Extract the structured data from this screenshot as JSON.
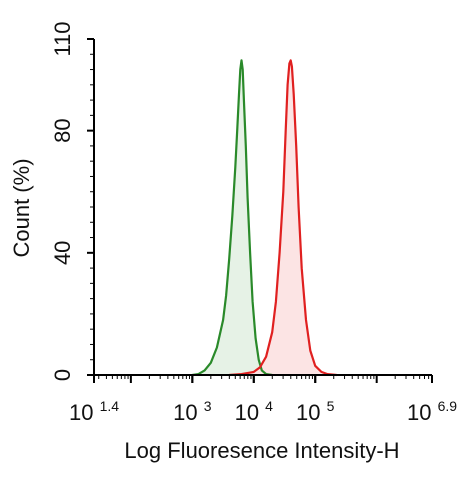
{
  "chart_data": {
    "type": "area",
    "xlabel": "Log Fluoresence Intensity-H",
    "ylabel": "Count  (%)",
    "xscale": "log",
    "xlim_log10": [
      1.4,
      6.9
    ],
    "ylim": [
      0,
      110
    ],
    "grid": false,
    "legend": "none",
    "x_ticks": [
      {
        "base": "10",
        "exp": "1.4",
        "log": 1.4
      },
      {
        "base": "10",
        "exp": "3",
        "log": 3
      },
      {
        "base": "10",
        "exp": "4",
        "log": 4
      },
      {
        "base": "10",
        "exp": "5",
        "log": 5
      },
      {
        "base": "10",
        "exp": "6.9",
        "log": 6.9
      }
    ],
    "y_ticks": [
      {
        "label": "0",
        "value": 0
      },
      {
        "label": "40",
        "value": 40
      },
      {
        "label": "80",
        "value": 80
      },
      {
        "label": "110",
        "value": 110
      }
    ],
    "series": [
      {
        "color": "#2a8a2a",
        "fill": "#e6f2e6",
        "points": [
          [
            3.0,
            0
          ],
          [
            3.1,
            0.3
          ],
          [
            3.2,
            1.5
          ],
          [
            3.3,
            4
          ],
          [
            3.4,
            9
          ],
          [
            3.5,
            18
          ],
          [
            3.55,
            26
          ],
          [
            3.6,
            38
          ],
          [
            3.65,
            52
          ],
          [
            3.7,
            68
          ],
          [
            3.73,
            80
          ],
          [
            3.76,
            92
          ],
          [
            3.78,
            100
          ],
          [
            3.8,
            103
          ],
          [
            3.82,
            100
          ],
          [
            3.84,
            90
          ],
          [
            3.87,
            75
          ],
          [
            3.9,
            58
          ],
          [
            3.94,
            40
          ],
          [
            3.98,
            24
          ],
          [
            4.03,
            12
          ],
          [
            4.08,
            5
          ],
          [
            4.13,
            1.5
          ],
          [
            4.2,
            0.3
          ],
          [
            4.3,
            0
          ]
        ]
      },
      {
        "color": "#e02020",
        "fill": "#fce4e4",
        "points": [
          [
            3.6,
            0
          ],
          [
            3.8,
            0.3
          ],
          [
            4.0,
            1
          ],
          [
            4.1,
            2.5
          ],
          [
            4.2,
            6
          ],
          [
            4.3,
            14
          ],
          [
            4.36,
            24
          ],
          [
            4.42,
            40
          ],
          [
            4.48,
            60
          ],
          [
            4.52,
            80
          ],
          [
            4.55,
            95
          ],
          [
            4.58,
            102
          ],
          [
            4.6,
            103
          ],
          [
            4.62,
            101
          ],
          [
            4.65,
            92
          ],
          [
            4.69,
            75
          ],
          [
            4.73,
            55
          ],
          [
            4.78,
            35
          ],
          [
            4.85,
            18
          ],
          [
            4.92,
            8
          ],
          [
            5.0,
            3
          ],
          [
            5.1,
            1
          ],
          [
            5.2,
            0.3
          ],
          [
            5.35,
            0
          ]
        ]
      }
    ]
  }
}
